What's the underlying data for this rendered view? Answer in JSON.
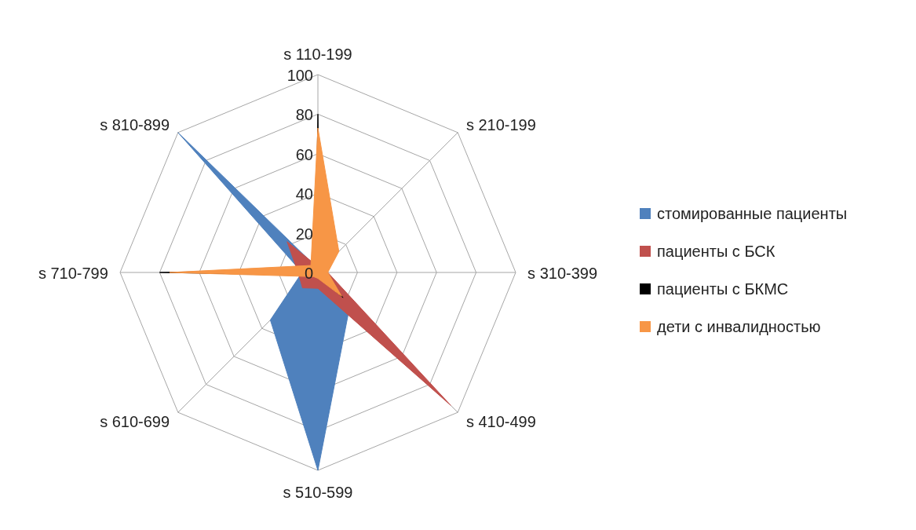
{
  "chart_data": {
    "type": "radar",
    "categories": [
      "s 110-199",
      "s 210-199",
      "s 310-399",
      "s 410-499",
      "s 510-599",
      "s 610-699",
      "s 710-799",
      "s 810-899"
    ],
    "series": [
      {
        "name": "стомированные пациенты",
        "color": "#4f81bd",
        "values": [
          2,
          0,
          2,
          23,
          100,
          34,
          8,
          100
        ]
      },
      {
        "name": "пациенты с БСК",
        "color": "#c0504d",
        "values": [
          3,
          0,
          5,
          95,
          8,
          11,
          10,
          22
        ]
      },
      {
        "name": "пациенты с БКМС",
        "color": "#000000",
        "values": [
          80,
          2,
          2,
          18,
          2,
          2,
          80,
          2
        ]
      },
      {
        "name": "дети с инвалидностью",
        "color": "#f79646",
        "values": [
          73,
          15,
          5,
          17,
          3,
          3,
          75,
          5
        ]
      }
    ],
    "ylim": [
      0,
      100
    ],
    "yticks": [
      0,
      20,
      40,
      60,
      80,
      100
    ],
    "grid": true,
    "legend": "right"
  }
}
